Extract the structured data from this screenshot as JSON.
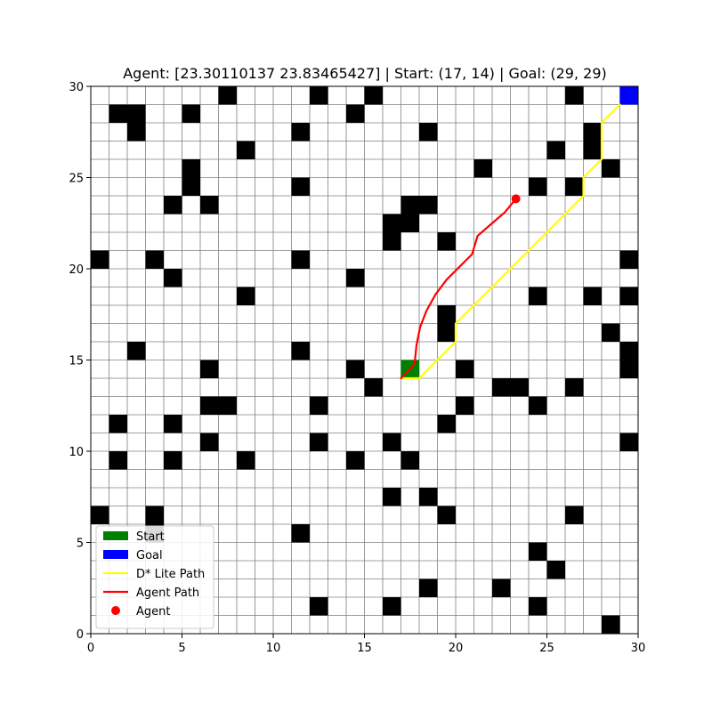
{
  "chart_data": {
    "type": "grid-map",
    "title": "Agent: [23.30110137 23.83465427] | Start: (17, 14) | Goal: (29, 29)",
    "xlim": [
      0,
      30
    ],
    "ylim": [
      0,
      30
    ],
    "xticks": [
      0,
      5,
      10,
      15,
      20,
      25,
      30
    ],
    "yticks": [
      0,
      5,
      10,
      15,
      20,
      25,
      30
    ],
    "grid": true,
    "cell_size": 1,
    "start": [
      17,
      14
    ],
    "goal": [
      29,
      29
    ],
    "agent": [
      23.30110137,
      23.83465427
    ],
    "obstacles": [
      [
        7,
        29
      ],
      [
        12,
        29
      ],
      [
        15,
        29
      ],
      [
        26,
        29
      ],
      [
        1,
        28
      ],
      [
        2,
        28
      ],
      [
        5,
        28
      ],
      [
        14,
        28
      ],
      [
        2,
        27
      ],
      [
        11,
        27
      ],
      [
        18,
        27
      ],
      [
        27,
        27
      ],
      [
        8,
        26
      ],
      [
        25,
        26
      ],
      [
        27,
        26
      ],
      [
        5,
        25
      ],
      [
        21,
        25
      ],
      [
        28,
        25
      ],
      [
        5,
        24
      ],
      [
        11,
        24
      ],
      [
        24,
        24
      ],
      [
        26,
        24
      ],
      [
        4,
        23
      ],
      [
        6,
        23
      ],
      [
        17,
        23
      ],
      [
        18,
        23
      ],
      [
        16,
        22
      ],
      [
        17,
        22
      ],
      [
        16,
        21
      ],
      [
        19,
        21
      ],
      [
        0,
        20
      ],
      [
        3,
        20
      ],
      [
        11,
        20
      ],
      [
        29,
        20
      ],
      [
        4,
        19
      ],
      [
        14,
        19
      ],
      [
        8,
        18
      ],
      [
        24,
        18
      ],
      [
        27,
        18
      ],
      [
        29,
        18
      ],
      [
        19,
        17
      ],
      [
        19,
        16
      ],
      [
        28,
        16
      ],
      [
        2,
        15
      ],
      [
        11,
        15
      ],
      [
        29,
        15
      ],
      [
        6,
        14
      ],
      [
        14,
        14
      ],
      [
        20,
        14
      ],
      [
        29,
        14
      ],
      [
        15,
        13
      ],
      [
        22,
        13
      ],
      [
        23,
        13
      ],
      [
        26,
        13
      ],
      [
        6,
        12
      ],
      [
        7,
        12
      ],
      [
        12,
        12
      ],
      [
        20,
        12
      ],
      [
        24,
        12
      ],
      [
        1,
        11
      ],
      [
        4,
        11
      ],
      [
        19,
        11
      ],
      [
        6,
        10
      ],
      [
        12,
        10
      ],
      [
        16,
        10
      ],
      [
        29,
        10
      ],
      [
        1,
        9
      ],
      [
        4,
        9
      ],
      [
        8,
        9
      ],
      [
        14,
        9
      ],
      [
        17,
        9
      ],
      [
        16,
        7
      ],
      [
        18,
        7
      ],
      [
        0,
        6
      ],
      [
        3,
        6
      ],
      [
        19,
        6
      ],
      [
        26,
        6
      ],
      [
        3,
        5
      ],
      [
        11,
        5
      ],
      [
        24,
        4
      ],
      [
        25,
        3
      ],
      [
        18,
        2
      ],
      [
        22,
        2
      ],
      [
        12,
        1
      ],
      [
        16,
        1
      ],
      [
        24,
        1
      ],
      [
        28,
        0
      ]
    ],
    "series": [
      {
        "name": "D* Lite Path",
        "color": "#ffff00",
        "x": [
          17,
          18,
          20,
          20,
          27,
          27,
          28,
          28,
          29
        ],
        "y": [
          14,
          14,
          16,
          17,
          24,
          25,
          26,
          28,
          29
        ]
      },
      {
        "name": "Agent Path",
        "color": "#ff0000",
        "x": [
          17.0,
          17.4,
          17.75,
          17.85,
          18.05,
          18.4,
          18.9,
          19.5,
          20.3,
          20.9,
          21.2,
          22.0,
          22.7,
          23.3
        ],
        "y": [
          14.0,
          14.4,
          14.8,
          15.8,
          16.8,
          17.7,
          18.6,
          19.4,
          20.2,
          20.8,
          21.8,
          22.5,
          23.1,
          23.83
        ]
      }
    ],
    "legend": {
      "placement": "lower-left",
      "entries": [
        {
          "label": "Start",
          "kind": "patch",
          "color": "#008000"
        },
        {
          "label": "Goal",
          "kind": "patch",
          "color": "#0000ff"
        },
        {
          "label": "D* Lite Path",
          "kind": "line",
          "color": "#ffff00"
        },
        {
          "label": "Agent Path",
          "kind": "line",
          "color": "#ff0000"
        },
        {
          "label": "Agent",
          "kind": "marker",
          "color": "#ff0000"
        }
      ]
    },
    "colors": {
      "obstacle": "#000000",
      "grid_line": "#808080",
      "start": "#008000",
      "goal": "#0000ff",
      "agent": "#ff0000"
    }
  }
}
